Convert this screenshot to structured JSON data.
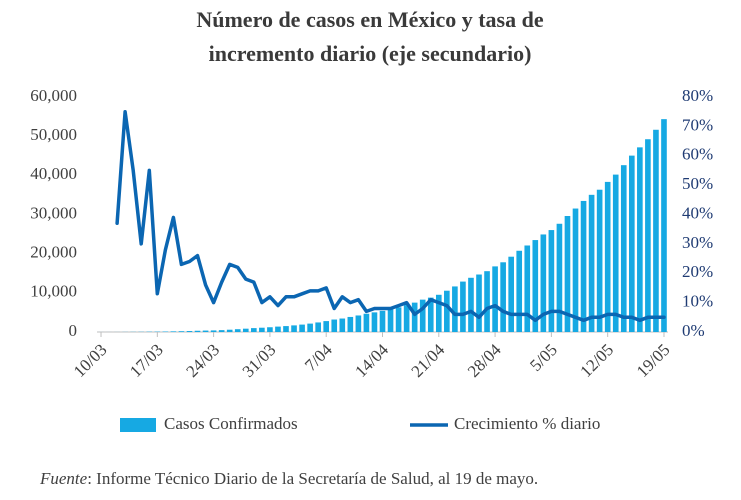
{
  "chart_data": {
    "type": "bar",
    "title": [
      "Número de casos en México y tasa de",
      "incremento diario (eje secundario)"
    ],
    "categories": [
      "10/03",
      null,
      null,
      null,
      null,
      null,
      null,
      "17/03",
      null,
      null,
      null,
      null,
      null,
      null,
      "24/03",
      null,
      null,
      null,
      null,
      null,
      null,
      "31/03",
      null,
      null,
      null,
      null,
      null,
      null,
      "7/04",
      null,
      null,
      null,
      null,
      null,
      null,
      "14/04",
      null,
      null,
      null,
      null,
      null,
      null,
      "21/04",
      null,
      null,
      null,
      null,
      null,
      null,
      "28/04",
      null,
      null,
      null,
      null,
      null,
      null,
      "5/05",
      null,
      null,
      null,
      null,
      null,
      null,
      "12/05",
      null,
      null,
      null,
      null,
      null,
      null,
      "19/05"
    ],
    "series": [
      {
        "name": "Casos Confirmados",
        "type": "bar",
        "axis": "y",
        "color": "#16a9e3",
        "values": [
          7,
          7,
          12,
          26,
          41,
          53,
          82,
          93,
          118,
          164,
          203,
          251,
          316,
          367,
          405,
          475,
          585,
          717,
          848,
          993,
          1094,
          1215,
          1378,
          1510,
          1688,
          1890,
          2143,
          2439,
          2785,
          3181,
          3441,
          3844,
          4219,
          4661,
          5014,
          5399,
          5847,
          6297,
          6875,
          7497,
          8261,
          8772,
          9501,
          10544,
          11633,
          12872,
          13842,
          14677,
          15529,
          16752,
          17799,
          19224,
          20739,
          22088,
          23471,
          24905,
          26025,
          27634,
          29616,
          31522,
          33460,
          35022,
          36327,
          38324,
          40186,
          42595,
          45032,
          47144,
          49219,
          51633,
          54346
        ]
      },
      {
        "name": "Crecimiento % diario",
        "type": "line",
        "axis": "y2",
        "color": "#0b66b2",
        "values": [
          null,
          null,
          37,
          75,
          55,
          30,
          55,
          13,
          28,
          39,
          23,
          24,
          26,
          16,
          10,
          17,
          23,
          22,
          18,
          17,
          10,
          12,
          9,
          12,
          12,
          13,
          14,
          14,
          15,
          8,
          12,
          10,
          11,
          7,
          8,
          8,
          8,
          9,
          10,
          6,
          8,
          11,
          10,
          9,
          6,
          6,
          7,
          5,
          8,
          9,
          7,
          6,
          6,
          6,
          4,
          6,
          7,
          7,
          6,
          5,
          4,
          5,
          5,
          6,
          6,
          5,
          5,
          4,
          5,
          5,
          5
        ]
      }
    ],
    "ylim": [
      0,
      60000
    ],
    "yticks": [
      0,
      {
        "value": 10000,
        "label": "10,000"
      },
      {
        "value": 20000,
        "label": "20,000"
      },
      {
        "value": 30000,
        "label": "30,000"
      },
      {
        "value": 40000,
        "label": "40,000"
      },
      {
        "value": 50000,
        "label": "50,000"
      },
      {
        "value": 60000,
        "label": "60,000"
      }
    ],
    "y2lim": [
      0,
      80
    ],
    "y2ticks": [
      {
        "value": 0,
        "label": "0%"
      },
      {
        "value": 10,
        "label": "10%"
      },
      {
        "value": 20,
        "label": "20%"
      },
      {
        "value": 30,
        "label": "30%"
      },
      {
        "value": 40,
        "label": "40%"
      },
      {
        "value": 50,
        "label": "50%"
      },
      {
        "value": 60,
        "label": "60%"
      },
      {
        "value": 70,
        "label": "70%"
      },
      {
        "value": 80,
        "label": "80%"
      }
    ],
    "grid": false,
    "legend": "bottom"
  },
  "footer": {
    "source_label": "Fuente",
    "text": ": Informe Técnico Diario de la Secretaría de Salud, al 19 de mayo."
  }
}
